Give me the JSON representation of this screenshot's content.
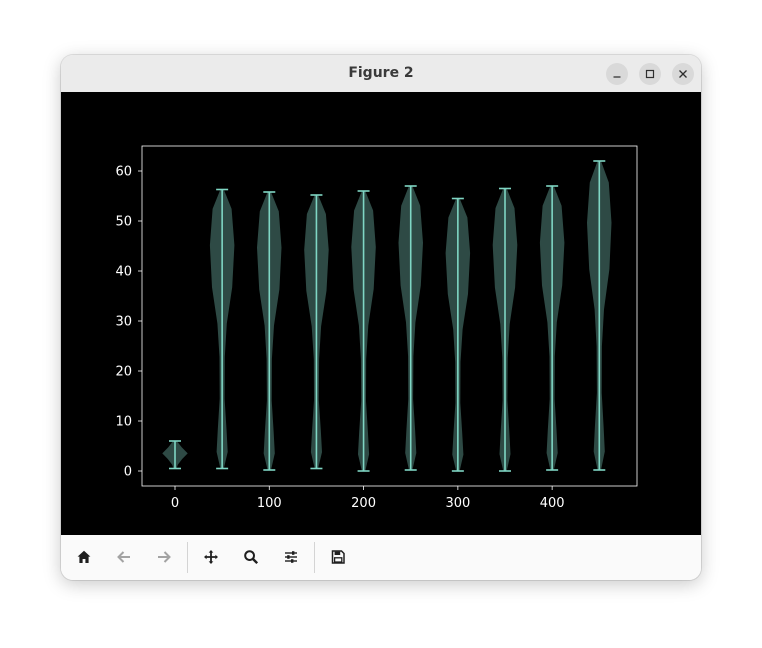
{
  "window": {
    "title": "Figure 2"
  },
  "colors": {
    "canvas_bg": "#000000",
    "axes_edge": "#ffffff",
    "violin_fill": "#2e4a45",
    "violin_line": "#7fd6c4",
    "tick_text": "#ffffff"
  },
  "toolbar": {
    "buttons": [
      "home-icon",
      "back-icon",
      "forward-icon",
      "pan-icon",
      "zoom-icon",
      "configure-icon",
      "save-icon"
    ]
  },
  "chart_data": {
    "type": "violin",
    "title": "",
    "xlabel": "",
    "ylabel": "",
    "xlim": [
      -35,
      490
    ],
    "ylim": [
      -3,
      65
    ],
    "xticks": [
      0,
      100,
      200,
      300,
      400
    ],
    "yticks": [
      0,
      10,
      20,
      30,
      40,
      50,
      60
    ],
    "xtick_labels": [
      "0",
      "100",
      "200",
      "300",
      "400"
    ],
    "ytick_labels": [
      "0",
      "10",
      "20",
      "30",
      "40",
      "50",
      "60"
    ],
    "violins": [
      {
        "position": 0,
        "min": 0.5,
        "max": 6.0,
        "width": 24
      },
      {
        "position": 50,
        "min": 0.5,
        "max": 56.3,
        "width": 24
      },
      {
        "position": 100,
        "min": 0.2,
        "max": 55.8,
        "width": 24
      },
      {
        "position": 150,
        "min": 0.5,
        "max": 55.2,
        "width": 24
      },
      {
        "position": 200,
        "min": 0.0,
        "max": 56.0,
        "width": 24
      },
      {
        "position": 250,
        "min": 0.2,
        "max": 57.0,
        "width": 24
      },
      {
        "position": 300,
        "min": 0.0,
        "max": 54.5,
        "width": 24
      },
      {
        "position": 350,
        "min": 0.0,
        "max": 56.5,
        "width": 24
      },
      {
        "position": 400,
        "min": 0.2,
        "max": 57.0,
        "width": 24
      },
      {
        "position": 450,
        "min": 0.2,
        "max": 62.0,
        "width": 24
      }
    ]
  }
}
